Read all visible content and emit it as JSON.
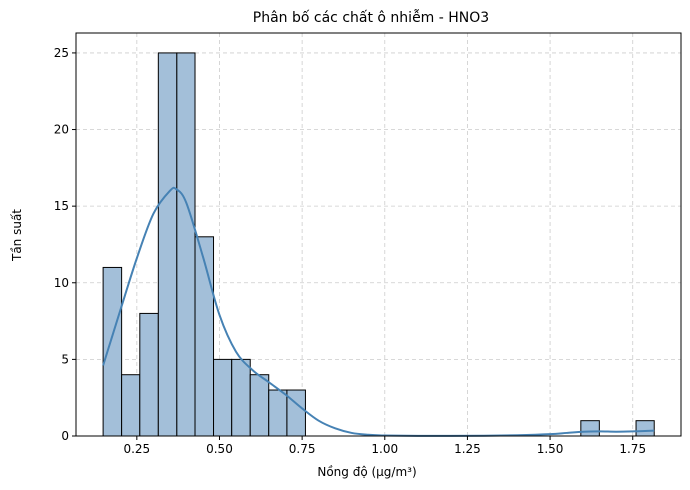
{
  "chart_data": {
    "type": "histogram",
    "title": "Phân bố các chất ô nhiễm - HNO3",
    "xlabel": "Nồng độ (µg/m³)",
    "ylabel": "Tần suất",
    "xlim": [
      0.066,
      1.896
    ],
    "ylim": [
      0,
      26.3
    ],
    "x_ticks": [
      0.25,
      0.5,
      0.75,
      1.0,
      1.25,
      1.5,
      1.75
    ],
    "x_tick_labels": [
      "0.25",
      "0.50",
      "0.75",
      "1.00",
      "1.25",
      "1.50",
      "1.75"
    ],
    "y_ticks": [
      0,
      5,
      10,
      15,
      20,
      25
    ],
    "y_tick_labels": [
      "0",
      "5",
      "10",
      "15",
      "20",
      "25"
    ],
    "grid": true,
    "bars": [
      {
        "x0": 0.148,
        "x1": 0.204,
        "count": 11
      },
      {
        "x0": 0.204,
        "x1": 0.259,
        "count": 4
      },
      {
        "x0": 0.259,
        "x1": 0.315,
        "count": 8
      },
      {
        "x0": 0.315,
        "x1": 0.371,
        "count": 25
      },
      {
        "x0": 0.371,
        "x1": 0.426,
        "count": 25
      },
      {
        "x0": 0.426,
        "x1": 0.482,
        "count": 13
      },
      {
        "x0": 0.482,
        "x1": 0.537,
        "count": 5
      },
      {
        "x0": 0.537,
        "x1": 0.593,
        "count": 5
      },
      {
        "x0": 0.593,
        "x1": 0.649,
        "count": 4
      },
      {
        "x0": 0.649,
        "x1": 0.704,
        "count": 3
      },
      {
        "x0": 0.704,
        "x1": 0.76,
        "count": 3
      },
      {
        "x0": 1.593,
        "x1": 1.649,
        "count": 1
      },
      {
        "x0": 1.76,
        "x1": 1.815,
        "count": 1
      }
    ],
    "kde": {
      "x": [
        0.148,
        0.2,
        0.25,
        0.3,
        0.35,
        0.37,
        0.4,
        0.45,
        0.5,
        0.55,
        0.6,
        0.65,
        0.7,
        0.75,
        0.8,
        0.85,
        0.9,
        0.95,
        1.0,
        1.1,
        1.2,
        1.3,
        1.4,
        1.5,
        1.55,
        1.6,
        1.65,
        1.7,
        1.75,
        1.815
      ],
      "y": [
        4.6,
        8.2,
        11.6,
        14.5,
        16.0,
        16.1,
        15.2,
        11.7,
        7.9,
        5.5,
        4.3,
        3.5,
        2.7,
        1.8,
        1.0,
        0.5,
        0.2,
        0.08,
        0.03,
        0.01,
        0.01,
        0.02,
        0.05,
        0.12,
        0.2,
        0.28,
        0.3,
        0.28,
        0.3,
        0.35
      ]
    },
    "colors": {
      "bar_fill": "#a3bfd9",
      "bar_edge": "#000000",
      "kde_line": "#4682b4",
      "grid": "#cccccc"
    }
  }
}
